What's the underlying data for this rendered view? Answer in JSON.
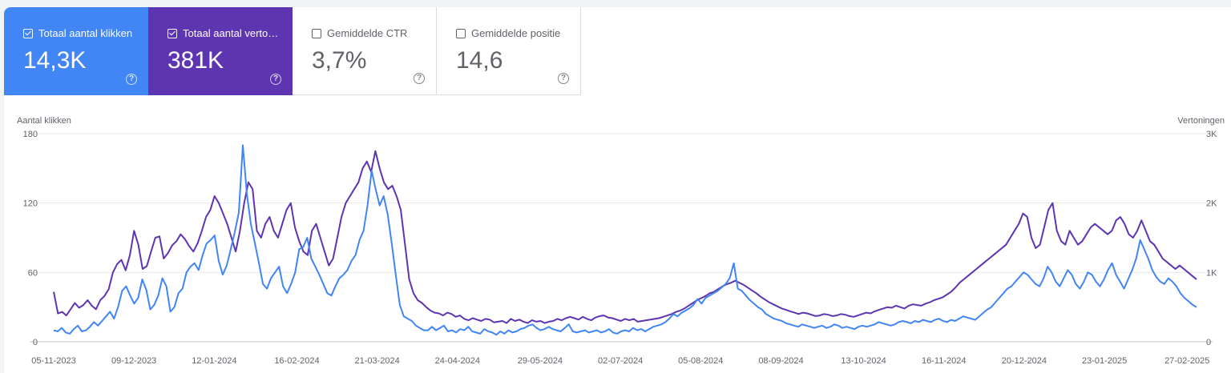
{
  "metrics": [
    {
      "label": "Totaal aantal klikken",
      "value": "14,3K",
      "checked": true,
      "color": "#4285f4",
      "help_icon": "help-circle-icon"
    },
    {
      "label": "Totaal aantal vertoningen",
      "value": "381K",
      "checked": true,
      "color": "#5e35b1",
      "help_icon": "help-circle-icon"
    },
    {
      "label": "Gemiddelde CTR",
      "value": "3,7%",
      "checked": false,
      "help_icon": "help-circle-icon"
    },
    {
      "label": "Gemiddelde positie",
      "value": "14,6",
      "checked": false,
      "help_icon": "help-circle-icon"
    }
  ],
  "chart_data": {
    "type": "line",
    "y_left_label": "Aantal klikken",
    "y_right_label": "Vertoningen",
    "y_left_ticks": [
      "0",
      "60",
      "120",
      "180"
    ],
    "y_right_ticks": [
      "0",
      "1K",
      "2K",
      "3K"
    ],
    "y_left_range": [
      0,
      180
    ],
    "y_right_range": [
      0,
      3000
    ],
    "x_ticks": [
      "05-11-2023",
      "09-12-2023",
      "12-01-2024",
      "16-02-2024",
      "21-03-2024",
      "24-04-2024",
      "29-05-2024",
      "02-07-2024",
      "05-08-2024",
      "08-09-2024",
      "13-10-2024",
      "16-11-2024",
      "20-12-2024",
      "23-01-2025",
      "27-02-2025"
    ],
    "x_start": "2023-11-05",
    "x_end": "2025-03-03",
    "grid": true,
    "series": [
      {
        "name": "Totaal aantal klikken",
        "axis": "left",
        "color": "#4285f4",
        "values": [
          10,
          9,
          12,
          8,
          7,
          11,
          14,
          9,
          10,
          13,
          17,
          14,
          18,
          22,
          26,
          20,
          30,
          44,
          48,
          40,
          33,
          38,
          54,
          45,
          28,
          32,
          40,
          55,
          48,
          26,
          30,
          42,
          46,
          60,
          65,
          68,
          62,
          75,
          85,
          88,
          92,
          70,
          58,
          66,
          80,
          95,
          112,
          170,
          128,
          102,
          85,
          68,
          50,
          46,
          55,
          60,
          65,
          48,
          42,
          50,
          60,
          80,
          82,
          90,
          72,
          65,
          58,
          50,
          42,
          40,
          48,
          55,
          58,
          62,
          70,
          75,
          88,
          96,
          118,
          148,
          132,
          118,
          126,
          110,
          85,
          58,
          32,
          22,
          20,
          18,
          14,
          12,
          10,
          10,
          13,
          10,
          12,
          14,
          9,
          10,
          8,
          11,
          10,
          13,
          9,
          8,
          7,
          11,
          9,
          8,
          6,
          9,
          7,
          10,
          8,
          9,
          11,
          12,
          14,
          15,
          12,
          10,
          11,
          13,
          11,
          10,
          9,
          12,
          15,
          9,
          8,
          9,
          10,
          8,
          9,
          10,
          8,
          9,
          11,
          8,
          7,
          9,
          10,
          9,
          12,
          10,
          11,
          9,
          11,
          13,
          14,
          15,
          17,
          20,
          24,
          22,
          25,
          27,
          29,
          32,
          37,
          33,
          38,
          40,
          42,
          44,
          47,
          50,
          55,
          68,
          46,
          44,
          40,
          36,
          33,
          30,
          28,
          24,
          22,
          20,
          19,
          18,
          16,
          15,
          14,
          13,
          15,
          14,
          13,
          12,
          13,
          14,
          12,
          13,
          15,
          14,
          12,
          13,
          12,
          11,
          13,
          14,
          13,
          14,
          15,
          17,
          16,
          15,
          14,
          15,
          17,
          18,
          17,
          16,
          18,
          17,
          19,
          18,
          17,
          19,
          20,
          18,
          17,
          19,
          18,
          20,
          22,
          21,
          20,
          19,
          22,
          25,
          28,
          30,
          34,
          38,
          42,
          46,
          48,
          52,
          56,
          60,
          58,
          54,
          50,
          48,
          55,
          65,
          60,
          52,
          48,
          55,
          62,
          58,
          50,
          46,
          52,
          60,
          58,
          52,
          48,
          54,
          62,
          68,
          58,
          52,
          46,
          54,
          62,
          72,
          88,
          80,
          72,
          62,
          56,
          52,
          50,
          55,
          52,
          48,
          42,
          38,
          35,
          32,
          30
        ]
      },
      {
        "name": "Totaal aantal vertoningen",
        "axis": "right",
        "color": "#5e35b1",
        "values": [
          720,
          410,
          430,
          380,
          470,
          560,
          490,
          530,
          600,
          520,
          470,
          600,
          660,
          760,
          1000,
          1120,
          1180,
          1030,
          1250,
          1600,
          1400,
          1050,
          1090,
          1300,
          1500,
          1520,
          1200,
          1280,
          1390,
          1450,
          1550,
          1480,
          1380,
          1300,
          1420,
          1600,
          1800,
          1900,
          2100,
          2000,
          1850,
          1700,
          1500,
          1300,
          1600,
          2000,
          2300,
          2200,
          1600,
          1500,
          1700,
          1800,
          1600,
          1500,
          1700,
          1900,
          2000,
          1650,
          1450,
          1300,
          1250,
          1600,
          1700,
          1500,
          1300,
          1100,
          1200,
          1500,
          1800,
          2000,
          2100,
          2200,
          2300,
          2500,
          2600,
          2450,
          2750,
          2500,
          2300,
          2200,
          2250,
          2100,
          1900,
          1400,
          900,
          700,
          600,
          560,
          500,
          450,
          420,
          410,
          380,
          420,
          400,
          360,
          380,
          330,
          310,
          340,
          320,
          300,
          330,
          320,
          280,
          290,
          300,
          270,
          330,
          300,
          320,
          290,
          270,
          310,
          290,
          300,
          270,
          290,
          300,
          330,
          310,
          340,
          360,
          340,
          320,
          360,
          330,
          310,
          350,
          370,
          380,
          350,
          340,
          320,
          300,
          330,
          310,
          330,
          290,
          300,
          310,
          320,
          330,
          340,
          360,
          380,
          400,
          430,
          450,
          480,
          520,
          560,
          600,
          630,
          660,
          700,
          720,
          760,
          800,
          830,
          850,
          880,
          850,
          820,
          780,
          740,
          700,
          650,
          610,
          570,
          540,
          510,
          480,
          460,
          440,
          420,
          400,
          420,
          410,
          390,
          370,
          380,
          400,
          390,
          370,
          380,
          400,
          390,
          370,
          360,
          380,
          400,
          420,
          410,
          440,
          460,
          480,
          500,
          490,
          520,
          500,
          480,
          520,
          540,
          530,
          520,
          550,
          570,
          600,
          620,
          640,
          680,
          720,
          780,
          850,
          900,
          950,
          1000,
          1050,
          1100,
          1150,
          1200,
          1250,
          1300,
          1350,
          1400,
          1500,
          1600,
          1700,
          1850,
          1800,
          1500,
          1350,
          1400,
          1650,
          1900,
          2000,
          1600,
          1450,
          1400,
          1600,
          1500,
          1400,
          1450,
          1550,
          1650,
          1700,
          1650,
          1600,
          1550,
          1600,
          1750,
          1800,
          1700,
          1550,
          1500,
          1600,
          1750,
          1600,
          1450,
          1400,
          1300,
          1200,
          1150,
          1100,
          1050,
          1100,
          1050,
          1000,
          950,
          900
        ]
      }
    ]
  }
}
